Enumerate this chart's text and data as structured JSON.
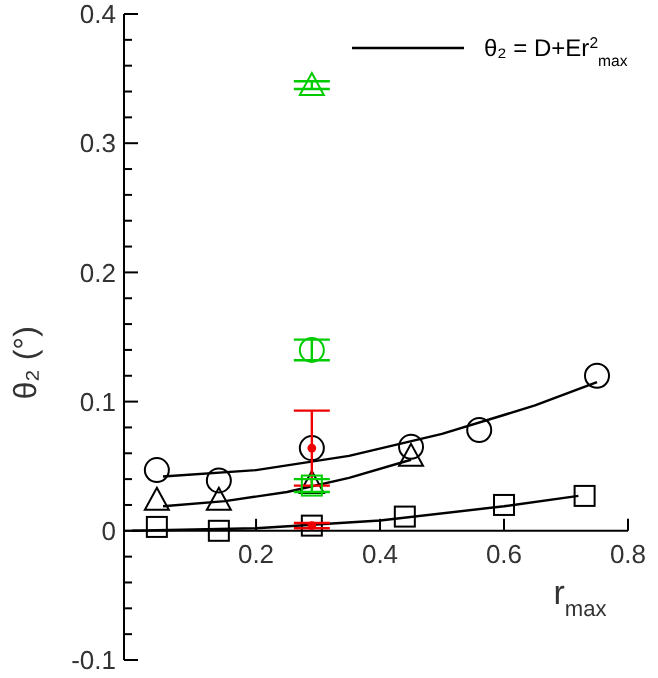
{
  "chart_data": {
    "type": "scatter",
    "xlabel": "r$_{max}$",
    "ylabel": "θ₂ (°)",
    "xlim": [
      -0.013,
      0.8
    ],
    "ylim": [
      -0.1,
      0.4
    ],
    "xticks": [
      0.2,
      0.4,
      0.6,
      0.8
    ],
    "yticks": [
      -0.1,
      {
        "value": -0.08,
        "label": null
      },
      {
        "value": -0.06,
        "label": null
      },
      {
        "value": -0.04,
        "label": null
      },
      {
        "value": -0.02,
        "label": null
      },
      0,
      {
        "value": 0.02,
        "label": null
      },
      {
        "value": 0.04,
        "label": null
      },
      {
        "value": 0.06,
        "label": null
      },
      {
        "value": 0.08,
        "label": null
      },
      0.1,
      {
        "value": 0.12,
        "label": null
      },
      {
        "value": 0.14,
        "label": null
      },
      {
        "value": 0.16,
        "label": null
      },
      {
        "value": 0.18,
        "label": null
      },
      0.2,
      {
        "value": 0.22,
        "label": null
      },
      {
        "value": 0.24,
        "label": null
      },
      {
        "value": 0.26,
        "label": null
      },
      {
        "value": 0.28,
        "label": null
      },
      0.3,
      {
        "value": 0.32,
        "label": null
      },
      {
        "value": 0.34,
        "label": null
      },
      {
        "value": 0.36,
        "label": null
      },
      {
        "value": 0.38,
        "label": null
      },
      0.4
    ],
    "legend": "top right",
    "grid": false,
    "series": [
      {
        "type": "line",
        "name": "θ₂ = D+Er$^{2}$$_{max}$",
        "color": "#000000",
        "marker": "none",
        "x": [
          0.05,
          0.2,
          0.35,
          0.5,
          0.65,
          0.75
        ],
        "values": [
          0.042,
          0.047,
          0.058,
          0.075,
          0.097,
          0.115
        ]
      },
      {
        "type": "line",
        "color": "#000000",
        "marker": "none",
        "x": [
          0.05,
          0.15,
          0.25,
          0.35,
          0.45
        ],
        "values": [
          0.019,
          0.023,
          0.03,
          0.041,
          0.055
        ]
      },
      {
        "type": "line",
        "color": "#000000",
        "marker": "none",
        "x": [
          0,
          0.2,
          0.4,
          0.6,
          0.72
        ],
        "values": [
          0,
          0.002,
          0.008,
          0.019,
          0.027
        ]
      },
      {
        "color": "#000000",
        "marker": "circle",
        "x": [
          0.04,
          0.14,
          0.29,
          0.45,
          0.56,
          0.75
        ],
        "values": [
          0.047,
          0.039,
          0.064,
          0.065,
          0.078,
          0.12
        ]
      },
      {
        "color": "#000000",
        "marker": "triangle",
        "x": [
          0.04,
          0.14,
          0.29,
          0.45
        ],
        "values": [
          0.024,
          0.024,
          0.037,
          0.058
        ]
      },
      {
        "color": "#000000",
        "marker": "square",
        "x": [
          0.04,
          0.14,
          0.29,
          0.44,
          0.6,
          0.73
        ],
        "values": [
          0.003,
          0.0,
          0.004,
          0.011,
          0.02,
          0.027
        ]
      },
      {
        "color": "#ee0000",
        "x": [
          0.29,
          0.29
        ],
        "values": [
          0.064,
          0.004
        ],
        "errors": [
          0.029,
          0.002
        ]
      },
      {
        "type": "scatter",
        "color": "#00cc00",
        "marker": "triangle",
        "x": [
          0.29
        ],
        "values": [
          0.345
        ],
        "errors": [
          0.003
        ]
      },
      {
        "type": "scatter",
        "color": "#00cc00",
        "marker": "circle",
        "x": [
          0.29
        ],
        "values": [
          0.14
        ],
        "errors": [
          0.008
        ]
      },
      {
        "type": "scatter",
        "color": "#00cc00",
        "marker": "square",
        "x": [
          0.29
        ],
        "values": [
          0.035
        ],
        "errors": [
          0.005
        ]
      }
    ]
  }
}
